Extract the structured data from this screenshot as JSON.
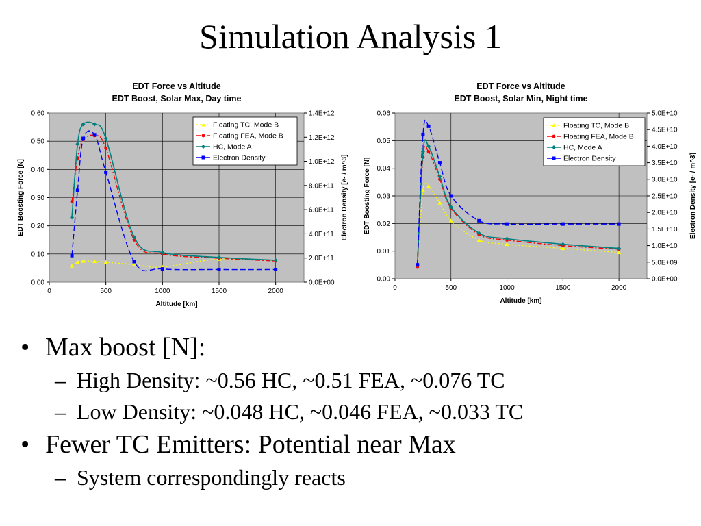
{
  "slide": {
    "title": "Simulation Analysis 1"
  },
  "colors": {
    "plot_bg": "#c0c0c0",
    "tc": "#ffff00",
    "fea": "#ff0000",
    "hc": "#008080",
    "density": "#0000ff"
  },
  "bullets": [
    {
      "text": "Max boost [N]:",
      "subs": [
        "High Density: ~0.56 HC, ~0.51 FEA, ~0.076 TC",
        "Low Density: ~0.048 HC, ~0.046 FEA, ~0.033 TC"
      ]
    },
    {
      "text": "Fewer TC Emitters: Potential near Max",
      "subs": [
        "System correspondingly reacts"
      ]
    }
  ],
  "chart_data": [
    {
      "type": "line",
      "title": "EDT Force vs Altitude",
      "subtitle": "EDT Boost, Solar Max, Day time",
      "xlabel": "Altitude [km]",
      "ylabel": "EDT Boosting Force [N]",
      "y2label": "Electron Density [e- / m^3]",
      "xlim": [
        0,
        2250
      ],
      "ylim": [
        0,
        0.6
      ],
      "y2lim": [
        0,
        1400000000000.0
      ],
      "xticks": [
        "0",
        "500",
        "1000",
        "1500",
        "2000"
      ],
      "yticks": [
        "0.00",
        "0.10",
        "0.20",
        "0.30",
        "0.40",
        "0.50",
        "0.60"
      ],
      "y2ticks": [
        "0.0E+00",
        "2.0E+11",
        "4.0E+11",
        "6.0E+11",
        "8.0E+11",
        "1.0E+12",
        "1.2E+12",
        "1.4E+12"
      ],
      "grid": true,
      "legend_position": "top-right",
      "series": [
        {
          "name": "Floating TC, Mode B",
          "axis": "left",
          "style": "tc",
          "x": [
            200,
            250,
            300,
            400,
            500,
            750,
            1000,
            1500,
            2000
          ],
          "y": [
            0.058,
            0.072,
            0.075,
            0.074,
            0.071,
            0.062,
            0.054,
            0.082,
            0.077
          ]
        },
        {
          "name": "Floating FEA, Mode B",
          "axis": "left",
          "style": "fea",
          "x": [
            200,
            250,
            300,
            400,
            500,
            750,
            1000,
            1500,
            2000
          ],
          "y": [
            0.285,
            0.44,
            0.505,
            0.52,
            0.475,
            0.15,
            0.1,
            0.085,
            0.075
          ]
        },
        {
          "name": "HC, Mode A",
          "axis": "left",
          "style": "hc",
          "x": [
            200,
            250,
            300,
            400,
            500,
            750,
            1000,
            1500,
            2000
          ],
          "y": [
            0.23,
            0.49,
            0.56,
            0.56,
            0.51,
            0.16,
            0.105,
            0.088,
            0.078
          ]
        },
        {
          "name": "Electron Density",
          "axis": "right",
          "style": "density",
          "x": [
            200,
            250,
            300,
            400,
            500,
            750,
            1000,
            1500,
            2000
          ],
          "y": [
            220000000000.0,
            760000000000.0,
            1190000000000.0,
            1220000000000.0,
            910000000000.0,
            170000000000.0,
            110000000000.0,
            105000000000.0,
            105000000000.0
          ]
        }
      ]
    },
    {
      "type": "line",
      "title": "EDT Force vs Altitude",
      "subtitle": "EDT Boost, Solar Min, Night time",
      "xlabel": "Altitude [km]",
      "ylabel": "EDT Boosting Force [N]",
      "y2label": "Electron Density [e- / m^3]",
      "xlim": [
        0,
        2250
      ],
      "ylim": [
        0,
        0.06
      ],
      "y2lim": [
        0,
        50000000000.0
      ],
      "xticks": [
        "0",
        "500",
        "1000",
        "1500",
        "2000"
      ],
      "yticks": [
        "0.00",
        "0.01",
        "0.02",
        "0.03",
        "0.04",
        "0.05",
        "0.06"
      ],
      "y2ticks": [
        "0.0E+00",
        "5.0E+09",
        "1.0E+10",
        "1.5E+10",
        "2.0E+10",
        "2.5E+10",
        "3.0E+10",
        "3.5E+10",
        "4.0E+10",
        "4.5E+10",
        "5.0E+10"
      ],
      "grid": true,
      "legend_position": "top-right",
      "series": [
        {
          "name": "Floating TC, Mode B",
          "axis": "left",
          "style": "tc",
          "x": [
            200,
            250,
            300,
            400,
            500,
            750,
            1000,
            1500,
            2000
          ],
          "y": [
            0.0045,
            0.032,
            0.0335,
            0.0275,
            0.021,
            0.014,
            0.0125,
            0.011,
            0.0095
          ]
        },
        {
          "name": "Floating FEA, Mode B",
          "axis": "left",
          "style": "fea",
          "x": [
            200,
            250,
            300,
            400,
            500,
            750,
            1000,
            1500,
            2000
          ],
          "y": [
            0.0042,
            0.044,
            0.046,
            0.036,
            0.0255,
            0.016,
            0.014,
            0.012,
            0.0107
          ]
        },
        {
          "name": "HC, Mode A",
          "axis": "left",
          "style": "hc",
          "x": [
            200,
            250,
            300,
            400,
            500,
            750,
            1000,
            1500,
            2000
          ],
          "y": [
            0.0048,
            0.046,
            0.048,
            0.037,
            0.026,
            0.0165,
            0.0145,
            0.0125,
            0.011
          ]
        },
        {
          "name": "Electron Density",
          "axis": "right",
          "style": "density",
          "x": [
            200,
            250,
            300,
            400,
            500,
            750,
            1000,
            1500,
            2000
          ],
          "y": [
            4200000000.0,
            43500000000.0,
            46000000000.0,
            35000000000.0,
            25000000000.0,
            17500000000.0,
            16500000000.0,
            16500000000.0,
            16500000000.0
          ]
        }
      ]
    }
  ]
}
